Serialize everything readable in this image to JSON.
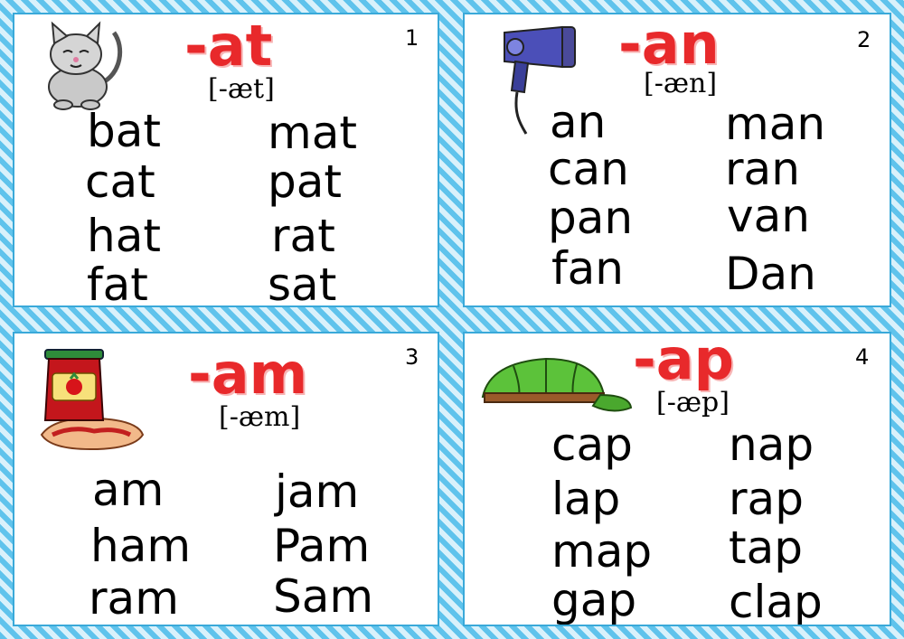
{
  "cards": [
    {
      "number": "1",
      "suffix": "-at",
      "phonetic": "[-æt]",
      "picture": "cat-icon",
      "words": [
        "bat",
        "mat",
        "cat",
        "pat",
        "hat",
        "rat",
        "fat",
        "sat"
      ]
    },
    {
      "number": "2",
      "suffix": "-an",
      "phonetic": "[-æn]",
      "picture": "hair-dryer-icon",
      "words": [
        "an",
        "man",
        "can",
        "ran",
        "pan",
        "van",
        "fan",
        "Dan"
      ]
    },
    {
      "number": "3",
      "suffix": "-am",
      "phonetic": "[-æm]",
      "picture": "jam-jar-icon",
      "words": [
        "am",
        "jam",
        "ham",
        "Pam",
        "ram",
        "Sam"
      ]
    },
    {
      "number": "4",
      "suffix": "-ap",
      "phonetic": "[-æp]",
      "picture": "cap-icon",
      "words": [
        "cap",
        "nap",
        "lap",
        "rap",
        "map",
        "tap",
        "gap",
        "clap"
      ]
    }
  ],
  "colors": {
    "suffix": "#e8292b",
    "border_stripe": "#5fc3ec",
    "card_background": "#ffffff"
  }
}
